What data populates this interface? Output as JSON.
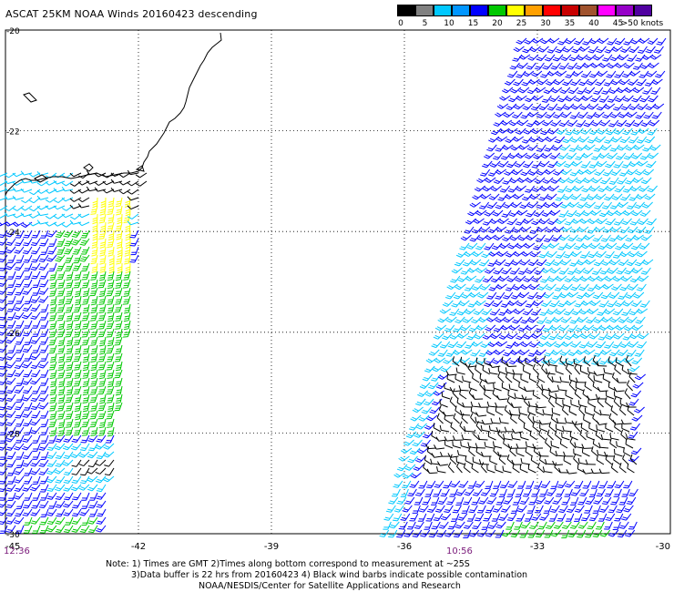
{
  "title": "ASCAT 25KM NOAA Winds 20160423 descending",
  "colorbar": {
    "labels": [
      "0",
      "5",
      "10",
      "15",
      "20",
      "25",
      "30",
      "35",
      "40",
      "45",
      ">50 knots"
    ],
    "colors": [
      "#000000",
      "#808080",
      "#00c8ff",
      "#0096ff",
      "#0000ff",
      "#00c800",
      "#ffff00",
      "#ffa000",
      "#ff0000",
      "#c80000",
      "#a0522d",
      "#ff00ff",
      "#9600c8",
      "#5000a0"
    ]
  },
  "map": {
    "lat_labels": [
      "-20",
      "-22",
      "-24",
      "-26",
      "-28",
      "-30"
    ],
    "lon_labels": [
      "-45",
      "-42",
      "-39",
      "-36",
      "-33",
      "-30"
    ],
    "time_labels": [
      "12:36",
      "10:56"
    ],
    "lat_values": [
      -20,
      -22,
      -24,
      -26,
      -28,
      -30
    ],
    "lon_values": [
      -45,
      -42,
      -39,
      -36,
      -33,
      -30
    ],
    "extent": {
      "lon_min": -45,
      "lon_max": -30,
      "lat_min": -30,
      "lat_max": -20
    },
    "wind_colors": {
      "contaminated": "#000000",
      "light": "#00c8ff",
      "moderate": "#0000ff",
      "fresh": "#00c800",
      "strong": "#ffff00"
    }
  },
  "footer": {
    "line1": "Note: 1) Times are GMT 2)Times along bottom correspond to measurement at ~25S",
    "line2": "3)Data buffer is 22 hrs from 20160423 4) Black wind barbs indicate possible contamination",
    "line3": "NOAA/NESDIS/Center for Satellite Applications and Research"
  }
}
